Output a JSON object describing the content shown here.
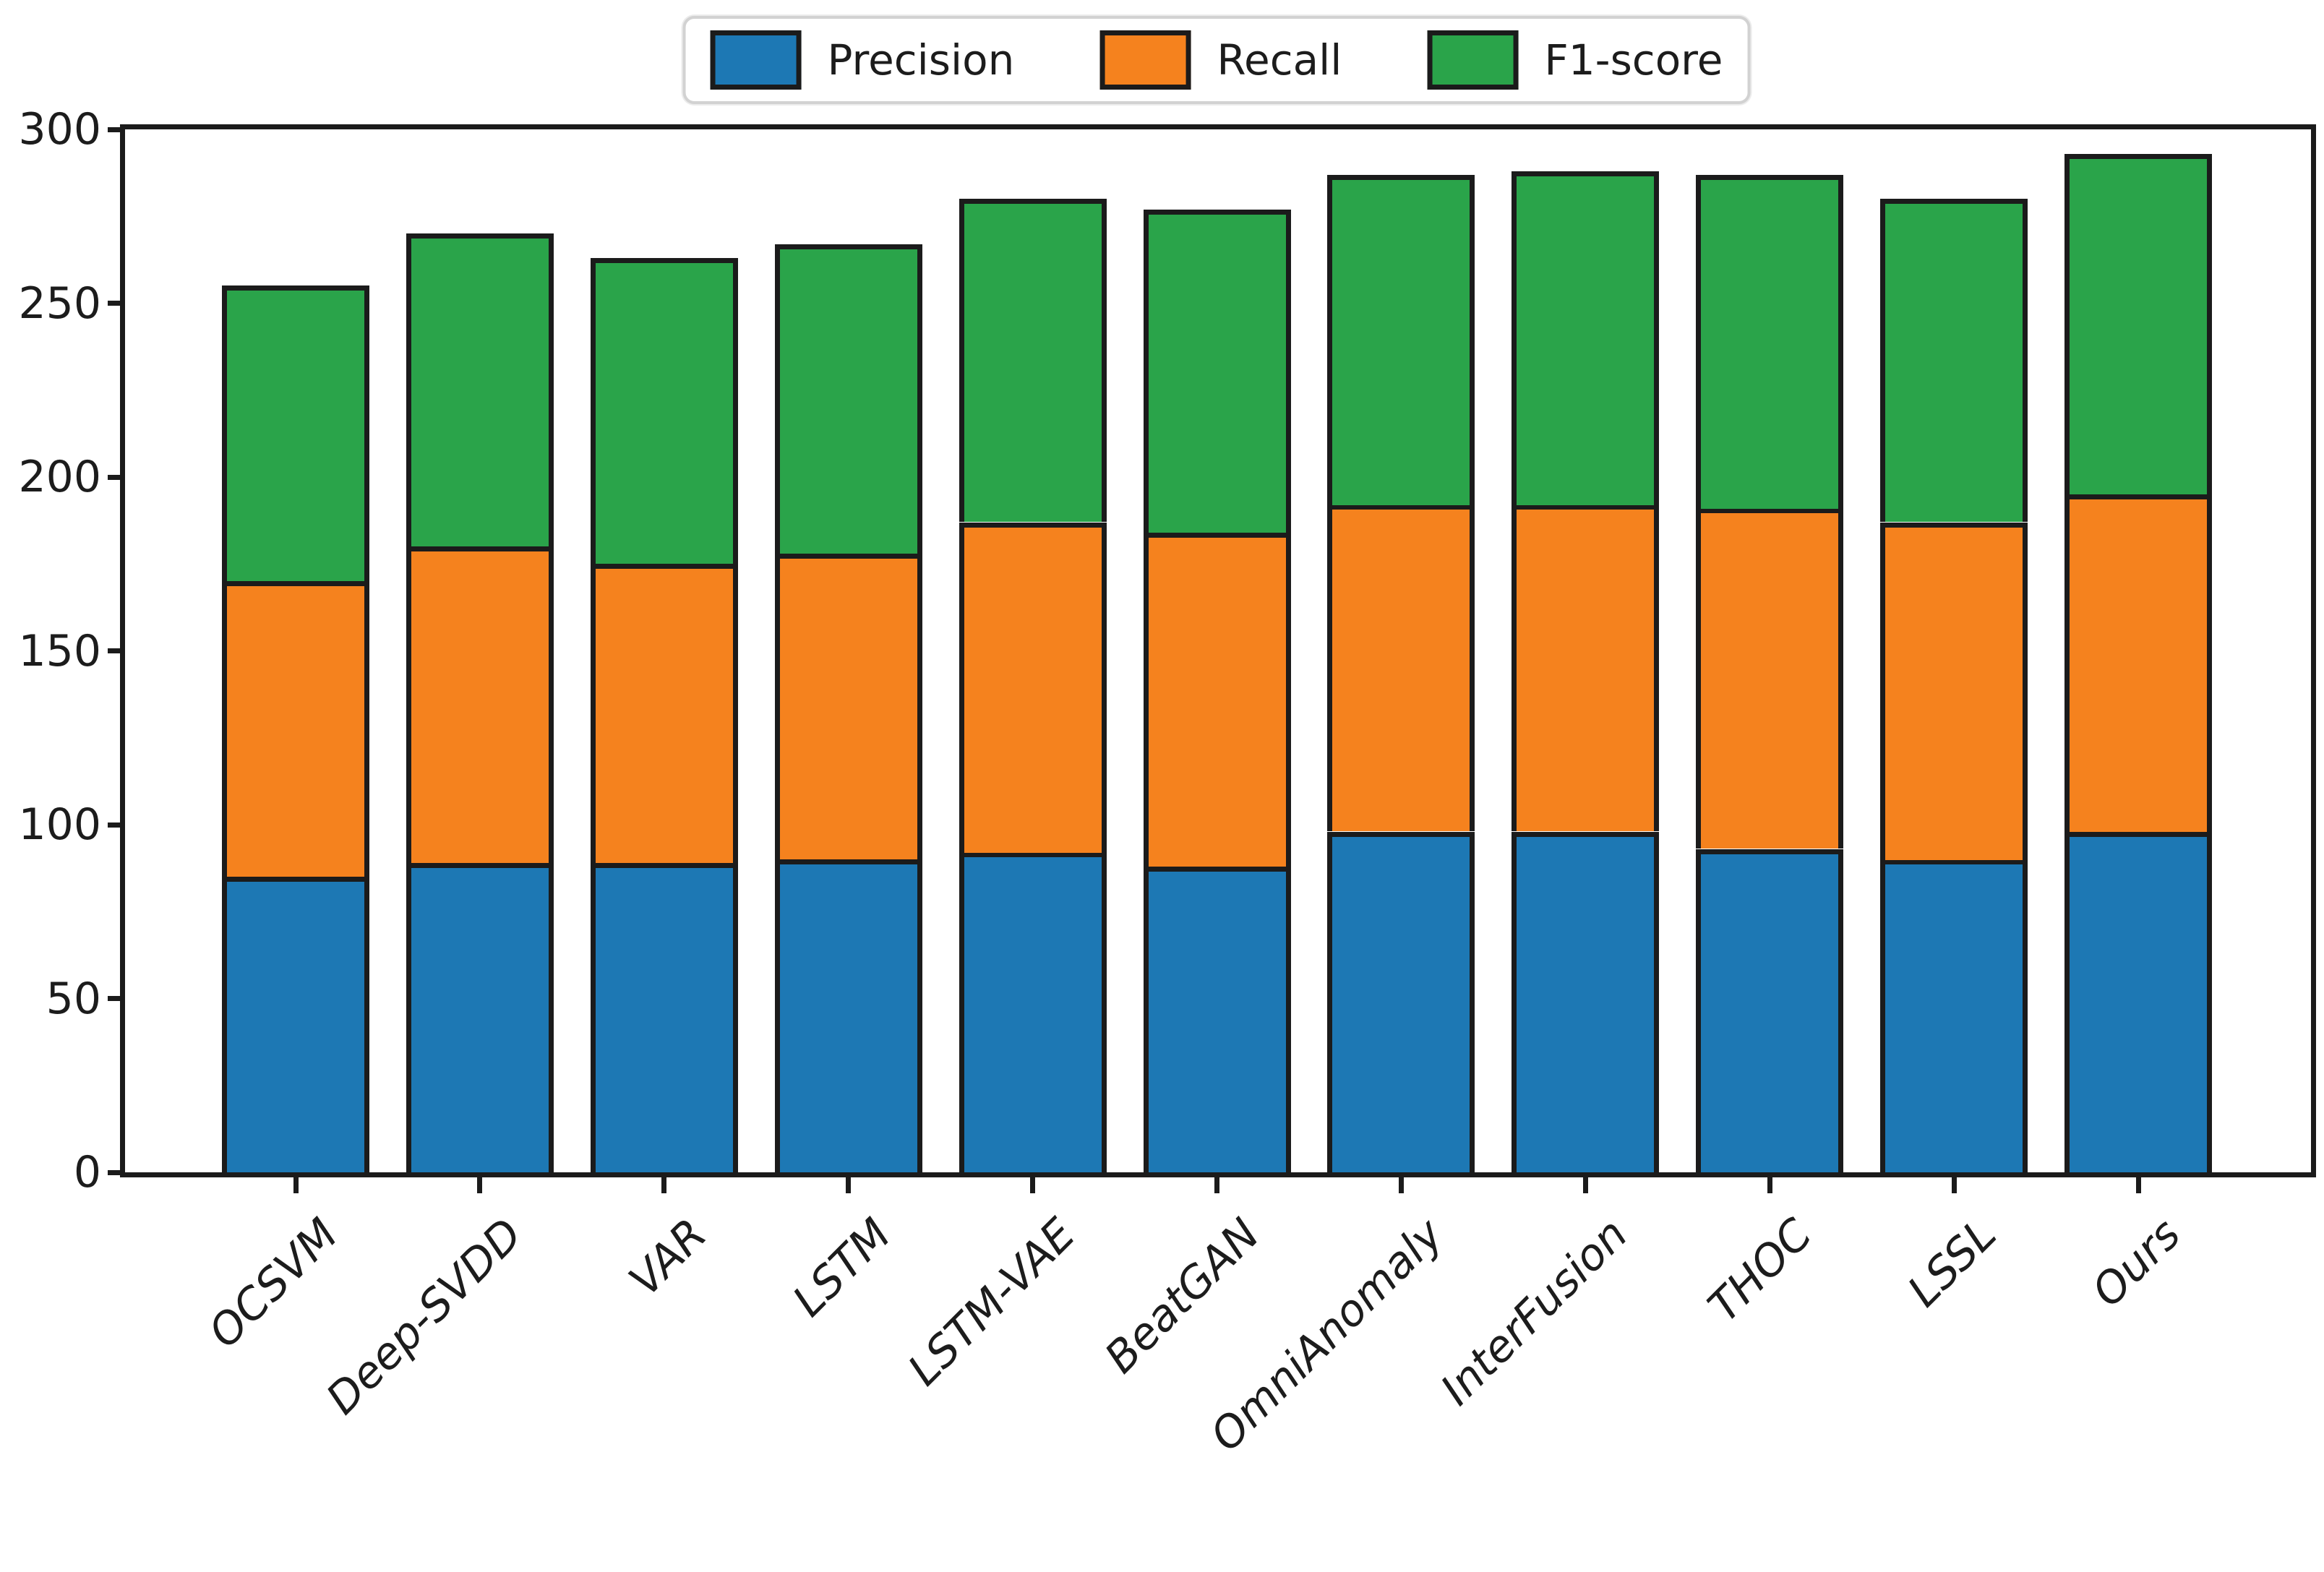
{
  "figure": {
    "background": "#ffffff",
    "text_color": "#1c1c1c"
  },
  "legend": {
    "position": "upper center",
    "items": [
      {
        "label": "Precision",
        "color": "#1d78b4"
      },
      {
        "label": "Recall",
        "color": "#f5821e"
      },
      {
        "label": "F1-score",
        "color": "#2aa44a"
      }
    ]
  },
  "chart_data": {
    "type": "bar",
    "stacked": true,
    "title": "",
    "xlabel": "",
    "ylabel": "",
    "categories": [
      "OCSVM",
      "Deep-SVDD",
      "VAR",
      "LSTM",
      "LSTM-VAE",
      "BeatGAN",
      "OmniAnomaly",
      "InterFusion",
      "THOC",
      "LSSL",
      "Ours"
    ],
    "series": [
      {
        "name": "Precision",
        "color": "#1d78b4",
        "values": [
          85,
          89,
          89,
          90,
          92,
          88,
          98,
          98,
          93,
          90,
          98
        ]
      },
      {
        "name": "Recall",
        "color": "#f5821e",
        "values": [
          85,
          91,
          86,
          88,
          95,
          96,
          94,
          94,
          98,
          97,
          97
        ]
      },
      {
        "name": "F1-score",
        "color": "#2aa44a",
        "values": [
          85,
          90,
          88,
          89,
          93,
          93,
          95,
          96,
          96,
          93,
          98
        ]
      }
    ],
    "stack_totals": [
      255,
      270,
      263,
      267,
      280,
      277,
      287,
      288,
      287,
      280,
      293
    ],
    "ylim": [
      0,
      300
    ],
    "yticks": [
      0,
      50,
      100,
      150,
      200,
      250,
      300
    ],
    "ytick_labels": [
      "0",
      "50",
      "100",
      "150",
      "200",
      "250",
      "300"
    ],
    "x_tick_rotation": 45,
    "grid": false,
    "bar_edge_color": "#1b1b1b",
    "legend_position": "upper center"
  }
}
